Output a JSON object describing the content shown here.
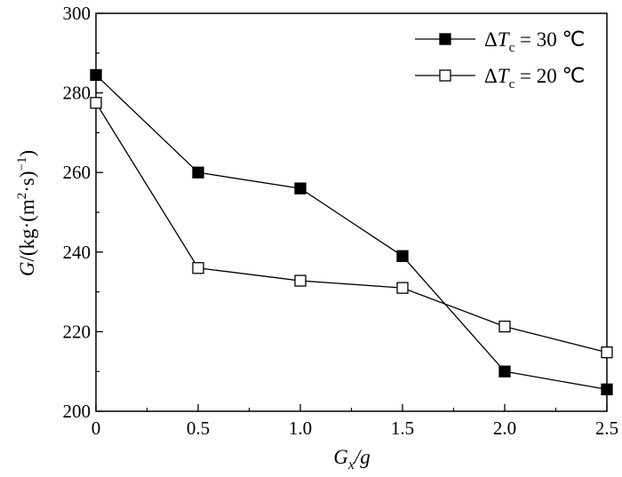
{
  "chart_data": {
    "type": "line",
    "x": [
      0,
      0.5,
      1.0,
      1.5,
      2.0,
      2.5
    ],
    "xticks": [
      "0",
      "0.5",
      "1.0",
      "1.5",
      "2.0",
      "2.5"
    ],
    "yticks": [
      "200",
      "220",
      "240",
      "260",
      "280",
      "300"
    ],
    "xlim": [
      0,
      2.5
    ],
    "ylim": [
      200,
      300
    ],
    "xlabel": "G_x/g",
    "ylabel": "G/(kg·(m²·s)⁻¹)",
    "legend_position": "top-right",
    "series": [
      {
        "name": "ΔT_c = 30 ℃",
        "marker": "filled-square",
        "values": [
          284.5,
          260.0,
          256.0,
          239.0,
          210.0,
          205.5
        ]
      },
      {
        "name": "ΔT_c = 20 ℃",
        "marker": "open-square",
        "values": [
          277.5,
          236.0,
          232.8,
          231.0,
          221.3,
          214.8
        ]
      }
    ]
  },
  "labels": {
    "xlabel_main": "G",
    "xlabel_sub": "x",
    "xlabel_tail": "/g",
    "ylabel_main": "G",
    "ylabel_mid": "/(kg·(m",
    "ylabel_sup1": "2",
    "ylabel_mid2": "·s)",
    "ylabel_sup2": "−1",
    "ylabel_end": ")",
    "legend1_delta": "Δ",
    "legend1_T": "T",
    "legend1_sub": "c",
    "legend1_tail": " = 30 ℃",
    "legend2_delta": "Δ",
    "legend2_T": "T",
    "legend2_sub": "c",
    "legend2_tail": " = 20 ℃"
  }
}
